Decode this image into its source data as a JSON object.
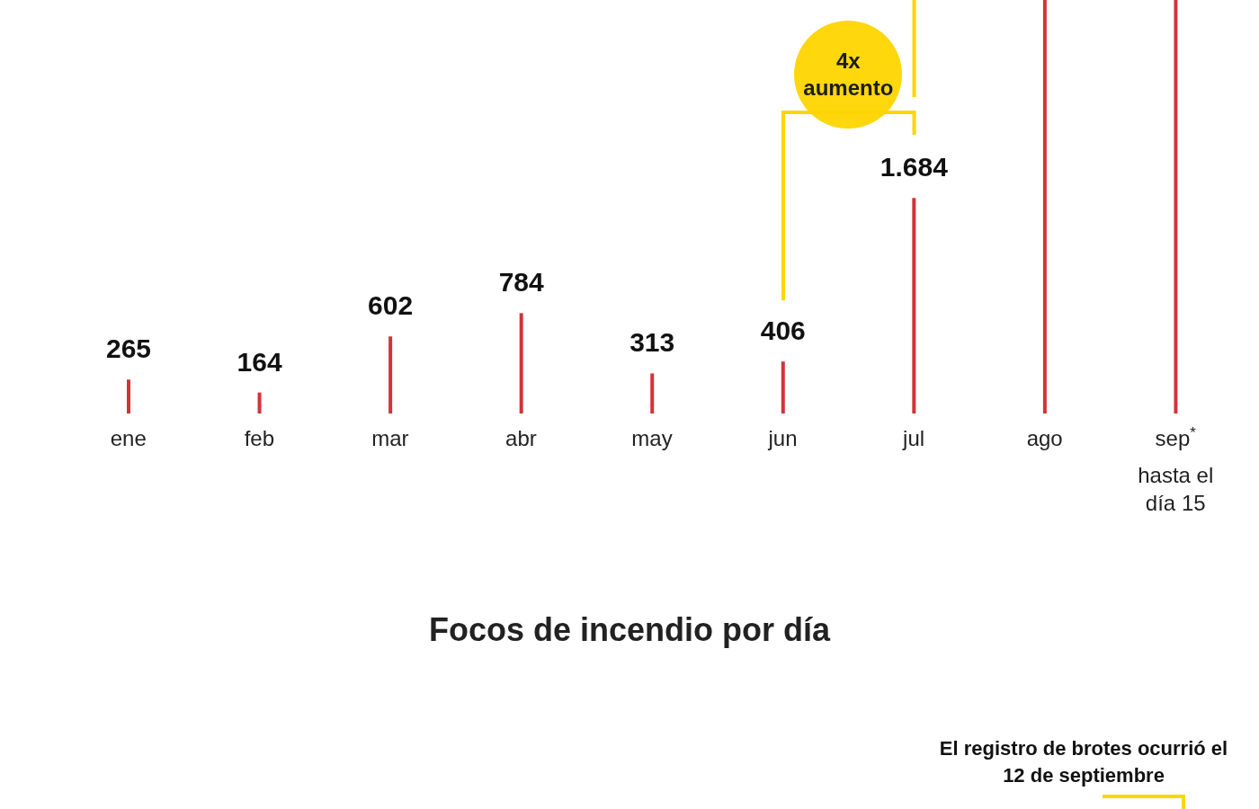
{
  "chart_data": {
    "type": "bar",
    "title": "Focos de incendio por día",
    "categories": [
      "ene",
      "feb",
      "mar",
      "abr",
      "may",
      "jun",
      "jul",
      "ago",
      "sep$^{*}$"
    ],
    "values": [
      265,
      164,
      602,
      784,
      313,
      406,
      1684,
      3230,
      3230
    ],
    "value_labels": [
      "265",
      "164",
      "602",
      "784",
      "313",
      "406",
      "1.684",
      null,
      null
    ],
    "color": "#d13438",
    "ylim": [
      0,
      3230
    ],
    "annotations": [
      "4x aumento",
      "hasta el día 15",
      "El registro de brotes ocurrió el 12 de septiembre"
    ]
  }
}
